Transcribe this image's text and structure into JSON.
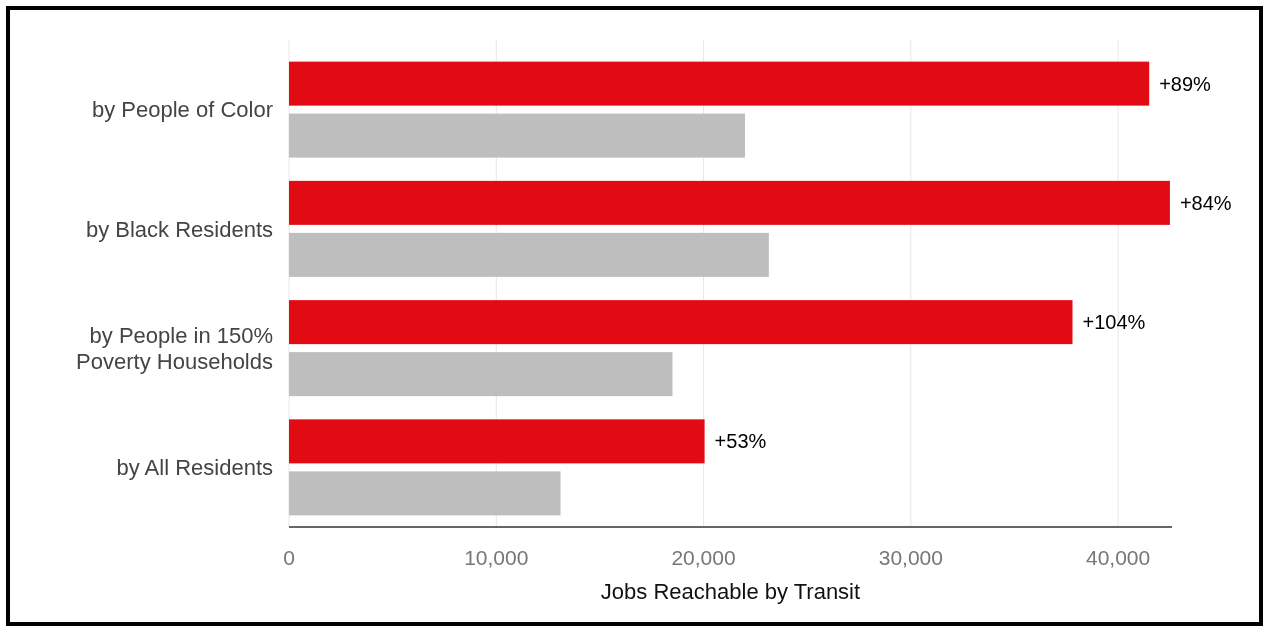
{
  "chart_data": {
    "type": "bar",
    "orientation": "horizontal",
    "xlabel": "Jobs Reachable by Transit",
    "categories": [
      "by People of Color",
      "by Black Residents",
      "by People in 150% Poverty Households",
      "by All Residents"
    ],
    "series": [
      {
        "color": "#e30b13",
        "values": [
          41500,
          42500,
          37800,
          20050
        ]
      },
      {
        "color": "#bfbebe",
        "values": [
          22000,
          23150,
          18500,
          13100
        ]
      }
    ],
    "xlim": [
      0,
      42600
    ],
    "xticks": [
      {
        "value": 0,
        "label": "0"
      },
      {
        "value": 10000,
        "label": "10,000"
      },
      {
        "value": 20000,
        "label": "20,000"
      },
      {
        "value": 30000,
        "label": "30,000"
      },
      {
        "value": 40000,
        "label": "40,000"
      }
    ],
    "grid": "x",
    "annotations": [
      {
        "text": "+89%",
        "x": 41500,
        "y": "by People of Color"
      },
      {
        "text": "+84%",
        "x": 42500,
        "y": "by Black Residents"
      },
      {
        "text": "+104%",
        "x": 37800,
        "y": "by People in 150% Poverty Households"
      },
      {
        "text": "+53%",
        "x": 20050,
        "y": "by All Residents"
      }
    ]
  }
}
